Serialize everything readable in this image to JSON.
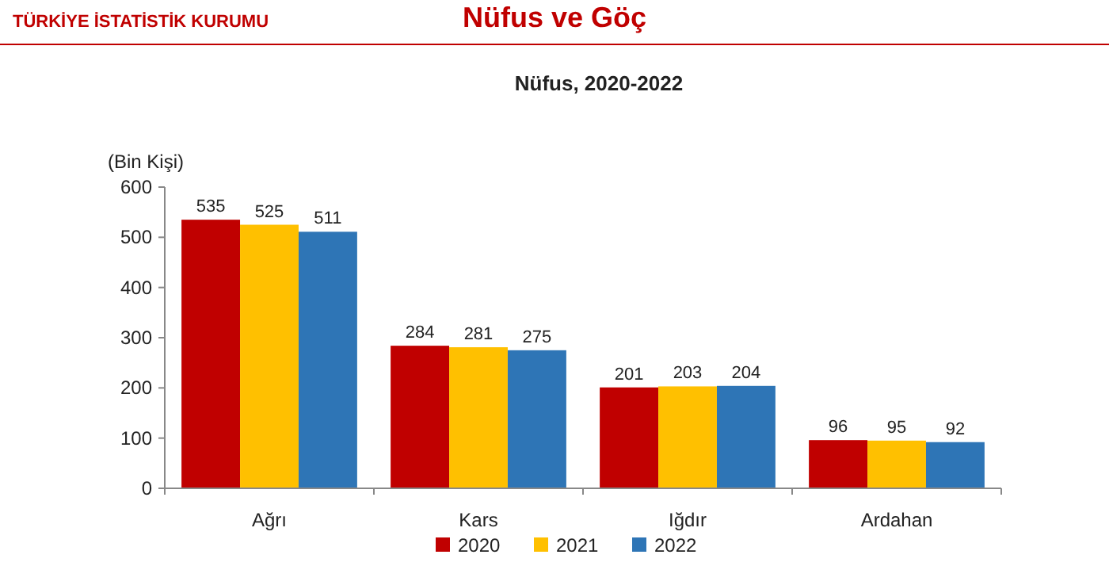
{
  "chart_data": {
    "type": "bar",
    "title": "Nüfus ve Göç",
    "subtitle": "Nüfus, 2020-2022",
    "ylabel": "(Bin Kişi)",
    "annotations": [
      "TÜRKİYE İSTATİSTİK KURUMU"
    ],
    "categories": [
      "Ağrı",
      "Kars",
      "Iğdır",
      "Ardahan"
    ],
    "series": [
      {
        "name": "2020",
        "color": "#c00000",
        "values": [
          535,
          284,
          201,
          96
        ]
      },
      {
        "name": "2021",
        "color": "#ffc000",
        "values": [
          525,
          281,
          203,
          95
        ]
      },
      {
        "name": "2022",
        "color": "#2e75b6",
        "values": [
          511,
          275,
          204,
          92
        ]
      }
    ],
    "ylim": [
      0,
      600
    ],
    "yticks": [
      0,
      100,
      200,
      300,
      400,
      500,
      600
    ],
    "grid": false,
    "legend": "bottom",
    "data_labels": true
  }
}
